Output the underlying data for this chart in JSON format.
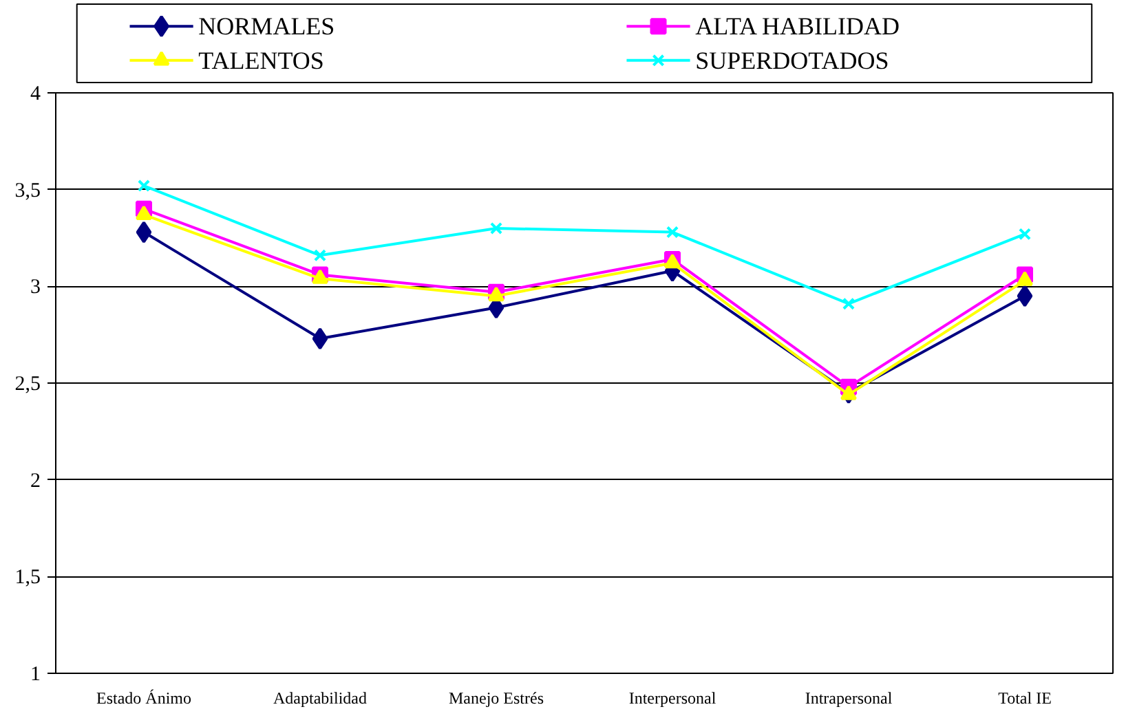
{
  "chart_data": {
    "type": "line",
    "categories": [
      "Estado Ánimo",
      "Adaptabilidad",
      "Manejo Estrés",
      "Interpersonal",
      "Intrapersonal",
      "Total IE"
    ],
    "series": [
      {
        "name": "NORMALES",
        "color": "#000080",
        "marker": "diamond",
        "values": [
          3.28,
          2.73,
          2.89,
          3.08,
          2.45,
          2.95
        ]
      },
      {
        "name": "ALTA HABILIDAD",
        "color": "#ff00ff",
        "marker": "square",
        "values": [
          3.4,
          3.06,
          2.97,
          3.14,
          2.48,
          3.06
        ]
      },
      {
        "name": "TALENTOS",
        "color": "#ffff00",
        "marker": "triangle",
        "values": [
          3.37,
          3.04,
          2.95,
          3.12,
          2.44,
          3.03
        ]
      },
      {
        "name": "SUPERDOTADOS",
        "color": "#00ffff",
        "marker": "cross",
        "values": [
          3.52,
          3.16,
          3.3,
          3.28,
          2.91,
          3.27
        ]
      }
    ],
    "ylim": [
      1,
      4
    ],
    "yticks": [
      {
        "value": 1,
        "label": "1"
      },
      {
        "value": 1.5,
        "label": "1,5"
      },
      {
        "value": 2,
        "label": "2"
      },
      {
        "value": 2.5,
        "label": "2,5"
      },
      {
        "value": 3,
        "label": "3"
      },
      {
        "value": 3.5,
        "label": "3,5"
      },
      {
        "value": 4,
        "label": "4"
      }
    ],
    "grid": "y",
    "legend": "top",
    "line_style": "solid"
  }
}
